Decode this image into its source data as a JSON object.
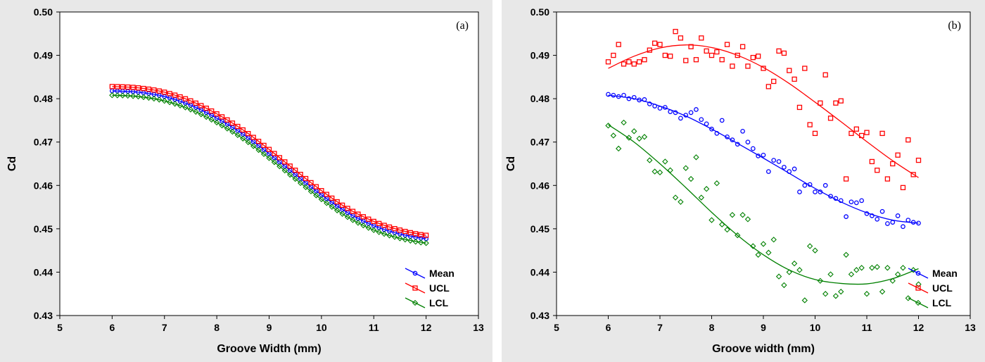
{
  "colors": {
    "Mean": "#0000ff",
    "UCL": "#ff0000",
    "LCL": "#008000",
    "plot_bg": "#ffffff",
    "figure_bg": "#e8e8e8"
  },
  "chart_data": [
    {
      "type": "scatter",
      "panel_label": "(a)",
      "xlabel": "Groove Width (mm)",
      "ylabel": "Cd",
      "xlim": [
        5,
        13
      ],
      "ylim": [
        0.43,
        0.5
      ],
      "xticks": [
        5,
        6,
        7,
        8,
        9,
        10,
        11,
        12,
        13
      ],
      "yticks": [
        0.43,
        0.44,
        0.45,
        0.46,
        0.47,
        0.48,
        0.49,
        0.5
      ],
      "legend_position": "bottom-right",
      "series": [
        {
          "name": "Mean",
          "marker": "circle",
          "fit_x": [
            6,
            6.5,
            7,
            7.5,
            8,
            8.5,
            9,
            9.5,
            10,
            10.5,
            11,
            11.5,
            12
          ],
          "fit_y": [
            0.4818,
            0.4815,
            0.4805,
            0.4785,
            0.4755,
            0.4718,
            0.4673,
            0.4625,
            0.4578,
            0.4537,
            0.4507,
            0.4488,
            0.4477
          ]
        },
        {
          "name": "UCL",
          "marker": "square",
          "fit_x": [
            6,
            6.5,
            7,
            7.5,
            8,
            8.5,
            9,
            9.5,
            10,
            10.5,
            11,
            11.5,
            12
          ],
          "fit_y": [
            0.4828,
            0.4825,
            0.4815,
            0.4795,
            0.4765,
            0.4728,
            0.4683,
            0.4635,
            0.4588,
            0.4547,
            0.4517,
            0.4497,
            0.4485
          ]
        },
        {
          "name": "LCL",
          "marker": "diamond",
          "fit_x": [
            6,
            6.5,
            7,
            7.5,
            8,
            8.5,
            9,
            9.5,
            10,
            10.5,
            11,
            11.5,
            12
          ],
          "fit_y": [
            0.4808,
            0.4805,
            0.4795,
            0.4775,
            0.4745,
            0.4708,
            0.4663,
            0.4615,
            0.4568,
            0.4527,
            0.4497,
            0.4478,
            0.4467
          ]
        }
      ]
    },
    {
      "type": "scatter",
      "panel_label": "(b)",
      "xlabel": "Groove width (mm)",
      "ylabel": "Cd",
      "xlim": [
        5,
        13
      ],
      "ylim": [
        0.43,
        0.5
      ],
      "xticks": [
        5,
        6,
        7,
        8,
        9,
        10,
        11,
        12,
        13
      ],
      "yticks": [
        0.43,
        0.44,
        0.45,
        0.46,
        0.47,
        0.48,
        0.49,
        0.5
      ],
      "legend_position": "bottom-right",
      "series": [
        {
          "name": "Mean",
          "marker": "circle",
          "x": [
            6.0,
            6.1,
            6.2,
            6.3,
            6.4,
            6.5,
            6.6,
            6.7,
            6.8,
            6.9,
            7.0,
            7.1,
            7.2,
            7.3,
            7.4,
            7.5,
            7.6,
            7.7,
            7.8,
            7.9,
            8.0,
            8.1,
            8.2,
            8.3,
            8.4,
            8.5,
            8.6,
            8.7,
            8.8,
            8.9,
            9.0,
            9.1,
            9.2,
            9.3,
            9.4,
            9.5,
            9.6,
            9.7,
            9.8,
            9.9,
            10.0,
            10.1,
            10.2,
            10.3,
            10.4,
            10.5,
            10.6,
            10.7,
            10.8,
            10.9,
            11.0,
            11.1,
            11.2,
            11.3,
            11.4,
            11.5,
            11.6,
            11.7,
            11.8,
            11.9,
            12.0
          ],
          "y": [
            0.481,
            0.4808,
            0.4805,
            0.4808,
            0.48,
            0.4803,
            0.4797,
            0.4798,
            0.4788,
            0.4783,
            0.4778,
            0.478,
            0.477,
            0.4768,
            0.4755,
            0.4762,
            0.4768,
            0.4775,
            0.4752,
            0.4742,
            0.473,
            0.472,
            0.475,
            0.4712,
            0.4705,
            0.4695,
            0.4725,
            0.47,
            0.4685,
            0.4668,
            0.467,
            0.4632,
            0.4658,
            0.4655,
            0.4642,
            0.4632,
            0.4638,
            0.4585,
            0.46,
            0.4602,
            0.4585,
            0.4585,
            0.46,
            0.4575,
            0.457,
            0.4565,
            0.4528,
            0.4562,
            0.456,
            0.4565,
            0.4535,
            0.453,
            0.4522,
            0.454,
            0.4512,
            0.4515,
            0.453,
            0.4505,
            0.452,
            0.4515,
            0.4513
          ],
          "fit_x": [
            6,
            6.5,
            7,
            7.5,
            8,
            8.5,
            9,
            9.5,
            10,
            10.5,
            11,
            11.5,
            12
          ],
          "fit_y": [
            0.4808,
            0.48,
            0.4783,
            0.476,
            0.473,
            0.4697,
            0.4663,
            0.4628,
            0.4593,
            0.4562,
            0.4537,
            0.452,
            0.4513
          ]
        },
        {
          "name": "UCL",
          "marker": "square",
          "x": [
            6.0,
            6.1,
            6.2,
            6.3,
            6.4,
            6.5,
            6.6,
            6.7,
            6.8,
            6.9,
            7.0,
            7.1,
            7.2,
            7.3,
            7.4,
            7.5,
            7.6,
            7.7,
            7.8,
            7.9,
            8.0,
            8.1,
            8.2,
            8.3,
            8.4,
            8.5,
            8.6,
            8.7,
            8.8,
            8.9,
            9.0,
            9.1,
            9.2,
            9.3,
            9.4,
            9.5,
            9.6,
            9.7,
            9.8,
            9.9,
            10.0,
            10.1,
            10.2,
            10.3,
            10.4,
            10.5,
            10.6,
            10.7,
            10.8,
            10.9,
            11.0,
            11.1,
            11.2,
            11.3,
            11.4,
            11.5,
            11.6,
            11.7,
            11.8,
            11.9,
            12.0
          ],
          "y": [
            0.4885,
            0.49,
            0.4925,
            0.488,
            0.4885,
            0.488,
            0.4885,
            0.489,
            0.4912,
            0.4928,
            0.4925,
            0.49,
            0.4898,
            0.4955,
            0.494,
            0.4888,
            0.492,
            0.489,
            0.494,
            0.491,
            0.49,
            0.4908,
            0.489,
            0.4925,
            0.4875,
            0.49,
            0.492,
            0.4875,
            0.4895,
            0.4898,
            0.487,
            0.4828,
            0.484,
            0.491,
            0.4905,
            0.4865,
            0.4845,
            0.478,
            0.487,
            0.474,
            0.472,
            0.479,
            0.4855,
            0.4755,
            0.479,
            0.4795,
            0.4615,
            0.472,
            0.473,
            0.4715,
            0.4722,
            0.4655,
            0.4635,
            0.472,
            0.4615,
            0.465,
            0.467,
            0.4595,
            0.4705,
            0.4625,
            0.4658
          ],
          "fit_x": [
            6,
            6.5,
            7,
            7.5,
            8,
            8.5,
            9,
            9.5,
            10,
            10.5,
            11,
            11.5,
            12
          ],
          "fit_y": [
            0.487,
            0.4898,
            0.4917,
            0.4924,
            0.4918,
            0.49,
            0.4872,
            0.4835,
            0.4792,
            0.4747,
            0.4701,
            0.4657,
            0.4618
          ]
        },
        {
          "name": "LCL",
          "marker": "diamond",
          "x": [
            6.0,
            6.1,
            6.2,
            6.3,
            6.4,
            6.5,
            6.6,
            6.7,
            6.8,
            6.9,
            7.0,
            7.1,
            7.2,
            7.3,
            7.4,
            7.5,
            7.6,
            7.7,
            7.8,
            7.9,
            8.0,
            8.1,
            8.2,
            8.3,
            8.4,
            8.5,
            8.6,
            8.7,
            8.8,
            8.9,
            9.0,
            9.1,
            9.2,
            9.3,
            9.4,
            9.5,
            9.6,
            9.7,
            9.8,
            9.9,
            10.0,
            10.1,
            10.2,
            10.3,
            10.4,
            10.5,
            10.6,
            10.7,
            10.8,
            10.9,
            11.0,
            11.1,
            11.2,
            11.3,
            11.4,
            11.5,
            11.6,
            11.7,
            11.8,
            11.9,
            12.0
          ],
          "y": [
            0.4738,
            0.4715,
            0.4685,
            0.4745,
            0.471,
            0.4725,
            0.4708,
            0.4712,
            0.4658,
            0.4632,
            0.463,
            0.4655,
            0.4635,
            0.4572,
            0.4562,
            0.464,
            0.4615,
            0.4665,
            0.4572,
            0.4592,
            0.452,
            0.4605,
            0.451,
            0.4498,
            0.4532,
            0.4485,
            0.4532,
            0.4522,
            0.446,
            0.444,
            0.4465,
            0.4445,
            0.4475,
            0.439,
            0.437,
            0.44,
            0.442,
            0.4405,
            0.4335,
            0.446,
            0.445,
            0.438,
            0.435,
            0.4395,
            0.4345,
            0.4355,
            0.444,
            0.4395,
            0.4405,
            0.441,
            0.435,
            0.441,
            0.4412,
            0.4355,
            0.441,
            0.438,
            0.4395,
            0.441,
            0.434,
            0.4405,
            0.4372
          ],
          "fit_x": [
            6,
            6.5,
            7,
            7.5,
            8,
            8.5,
            9,
            9.5,
            10,
            10.5,
            11,
            11.5,
            12
          ],
          "fit_y": [
            0.474,
            0.47,
            0.465,
            0.4595,
            0.4538,
            0.4485,
            0.444,
            0.4405,
            0.4383,
            0.4374,
            0.4373,
            0.4385,
            0.4408
          ]
        }
      ]
    }
  ]
}
